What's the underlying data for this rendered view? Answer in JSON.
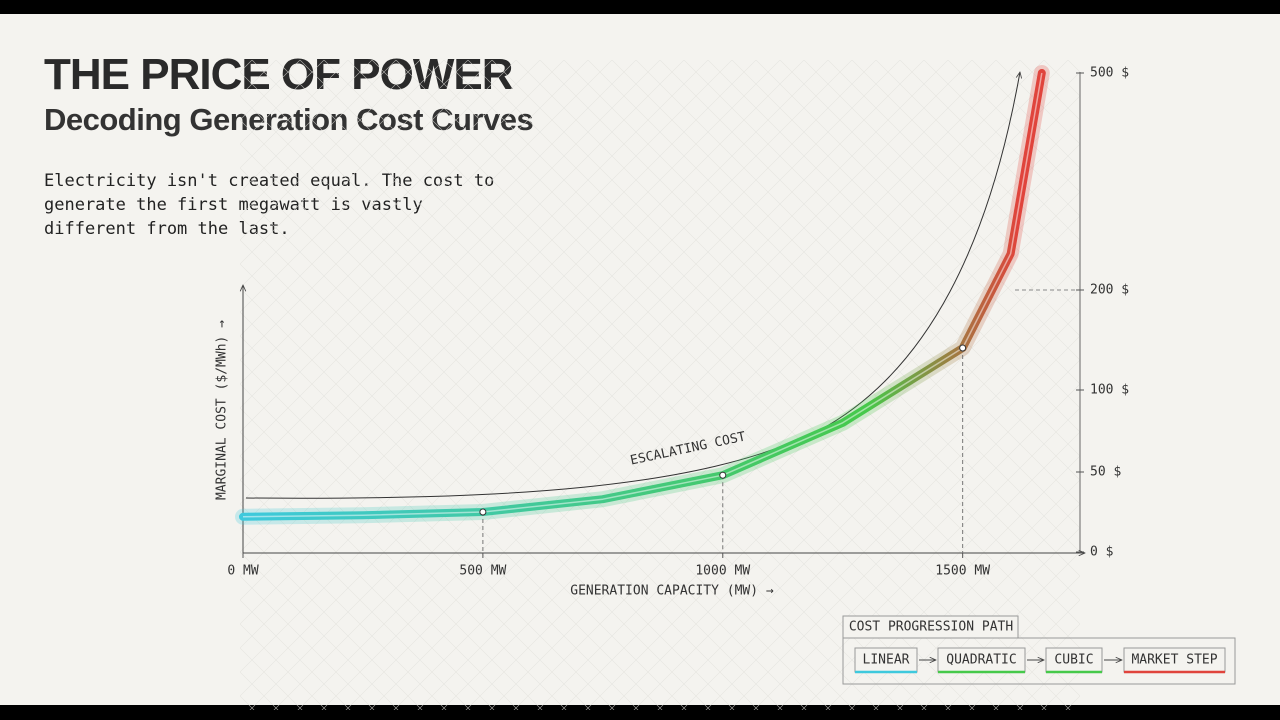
{
  "chart_data": {
    "type": "line",
    "title": "THE PRICE OF POWER",
    "subtitle": "Decoding Generation Cost Curves",
    "description": "Electricity isn't created equal. The cost to generate the first megawatt is vastly different from the last.",
    "x_label": "GENERATION CAPACITY (MW) →",
    "y_label": "MARGINAL COST ($/MWh) →",
    "annotation": "ESCALATING COST",
    "x": [
      0,
      250,
      500,
      750,
      1000,
      1250,
      1500,
      1600,
      1665
    ],
    "series": [
      {
        "name": "Marginal cost",
        "colors": [
          "#3ec9dd",
          "#46c94a",
          "#e0443c"
        ],
        "values": [
          22,
          23,
          25,
          33,
          48,
          80,
          142,
          250,
          500
        ]
      }
    ],
    "highlight_points": [
      2,
      4,
      6
    ],
    "xlim": [
      0,
      1730
    ],
    "xticks": [
      {
        "value": 0,
        "label": "0 MW"
      },
      {
        "value": 500,
        "label": "500 MW"
      },
      {
        "value": 1000,
        "label": "1000 MW"
      },
      {
        "value": 1500,
        "label": "1500 MW"
      }
    ],
    "ylim": [
      0,
      500
    ],
    "yticks": [
      {
        "value": 0,
        "label": "0 $"
      },
      {
        "value": 50,
        "label": "50 $"
      },
      {
        "value": 100,
        "label": "100 $"
      },
      {
        "value": 200,
        "label": "200 $"
      },
      {
        "value": 500,
        "label": "500 $"
      }
    ],
    "legend_title": "COST PROGRESSION PATH",
    "legend_steps": [
      {
        "label": "LINEAR",
        "color": "#3ec9dd"
      },
      {
        "label": "QUADRATIC",
        "color": "#46c94a"
      },
      {
        "label": "CUBIC",
        "color": "#46c94a"
      },
      {
        "label": "MARKET STEP",
        "color": "#e0443c"
      }
    ]
  }
}
